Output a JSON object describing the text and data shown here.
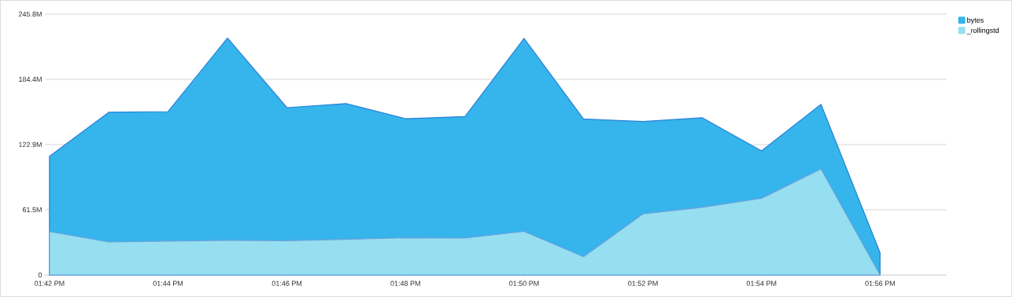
{
  "chart_data": {
    "type": "area",
    "x": [
      13.7,
      13.7167,
      13.7333,
      13.75,
      13.7667,
      13.7833,
      13.8,
      13.8167,
      13.8333,
      13.85,
      13.8667,
      13.8833,
      13.9,
      13.9167,
      13.9333
    ],
    "series": [
      {
        "name": "bytes",
        "color": "#36b4ec",
        "values": [
          111.8,
          153.4,
          154.0,
          223.3,
          157.7,
          161.5,
          147.3,
          149.3,
          222.9,
          147.0,
          144.6,
          148.2,
          117.0,
          160.8,
          20.9
        ]
      },
      {
        "name": "_rollingstd",
        "color": "#95dff0",
        "values": [
          40.9,
          31.1,
          32.0,
          32.6,
          32.3,
          33.6,
          35.1,
          34.8,
          41.1,
          17.2,
          57.6,
          63.7,
          72.3,
          99.9,
          0
        ]
      }
    ],
    "xlim": [
      13.6987,
      13.952
    ],
    "xticks": [
      {
        "value": 13.7,
        "label": "01:42 PM"
      },
      {
        "value": 13.7333,
        "label": "01:44 PM"
      },
      {
        "value": 13.7667,
        "label": "01:46 PM"
      },
      {
        "value": 13.8,
        "label": "01:48 PM"
      },
      {
        "value": 13.8333,
        "label": "01:50 PM"
      },
      {
        "value": 13.8667,
        "label": "01:52 PM"
      },
      {
        "value": 13.9,
        "label": "01:54 PM"
      },
      {
        "value": 13.9333,
        "label": "01:56 PM"
      }
    ],
    "ylim": [
      0,
      245.8
    ],
    "yticks": [
      0,
      {
        "value": 61.5,
        "label": "61.5M"
      },
      {
        "value": 122.9,
        "label": "122.9M"
      },
      {
        "value": 184.4,
        "label": "184.4M"
      },
      {
        "value": 245.8,
        "label": "245.8M"
      }
    ],
    "grid": "y",
    "legend": "top right",
    "marker": "none"
  }
}
